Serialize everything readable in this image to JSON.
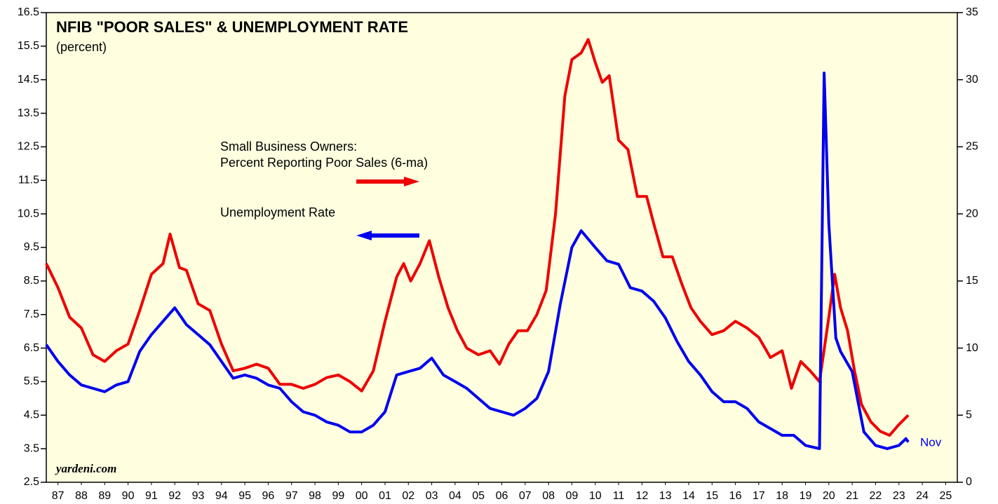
{
  "chart_data": {
    "type": "line",
    "title": "NFIB \"POOR SALES\" & UNEMPLOYMENT RATE",
    "subtitle": "(percent)",
    "annotations": [
      "Small Business Owners:",
      "Percent Reporting Poor Sales (6-ma)",
      "Unemployment Rate",
      "yardeni.com",
      "Nov"
    ],
    "xlim": [
      1987,
      2026
    ],
    "xticks": [
      {
        "value": 1987.5,
        "label": "87"
      },
      {
        "value": 1988.5,
        "label": "88"
      },
      {
        "value": 1989.5,
        "label": "89"
      },
      {
        "value": 1990.5,
        "label": "90"
      },
      {
        "value": 1991.5,
        "label": "91"
      },
      {
        "value": 1992.5,
        "label": "92"
      },
      {
        "value": 1993.5,
        "label": "93"
      },
      {
        "value": 1994.5,
        "label": "94"
      },
      {
        "value": 1995.5,
        "label": "95"
      },
      {
        "value": 1996.5,
        "label": "96"
      },
      {
        "value": 1997.5,
        "label": "97"
      },
      {
        "value": 1998.5,
        "label": "98"
      },
      {
        "value": 1999.5,
        "label": "99"
      },
      {
        "value": 2000.5,
        "label": "00"
      },
      {
        "value": 2001.5,
        "label": "01"
      },
      {
        "value": 2002.5,
        "label": "02"
      },
      {
        "value": 2003.5,
        "label": "03"
      },
      {
        "value": 2004.5,
        "label": "04"
      },
      {
        "value": 2005.5,
        "label": "05"
      },
      {
        "value": 2006.5,
        "label": "06"
      },
      {
        "value": 2007.5,
        "label": "07"
      },
      {
        "value": 2008.5,
        "label": "08"
      },
      {
        "value": 2009.5,
        "label": "09"
      },
      {
        "value": 2010.5,
        "label": "10"
      },
      {
        "value": 2011.5,
        "label": "11"
      },
      {
        "value": 2012.5,
        "label": "12"
      },
      {
        "value": 2013.5,
        "label": "13"
      },
      {
        "value": 2014.5,
        "label": "14"
      },
      {
        "value": 2015.5,
        "label": "15"
      },
      {
        "value": 2016.5,
        "label": "16"
      },
      {
        "value": 2017.5,
        "label": "17"
      },
      {
        "value": 2018.5,
        "label": "18"
      },
      {
        "value": 2019.5,
        "label": "19"
      },
      {
        "value": 2020.5,
        "label": "20"
      },
      {
        "value": 2021.5,
        "label": "21"
      },
      {
        "value": 2022.5,
        "label": "22"
      },
      {
        "value": 2023.5,
        "label": "23"
      },
      {
        "value": 2024.5,
        "label": "24"
      },
      {
        "value": 2025.5,
        "label": "25"
      }
    ],
    "ylim": [
      2.5,
      16.5
    ],
    "yticks": [
      2.5,
      3.5,
      4.5,
      5.5,
      6.5,
      7.5,
      8.5,
      9.5,
      10.5,
      11.5,
      12.5,
      13.5,
      14.5,
      15.5,
      16.5
    ],
    "y2lim": [
      0,
      35
    ],
    "y2ticks": [
      0,
      5,
      10,
      15,
      20,
      25,
      30,
      35
    ],
    "series": [
      {
        "name": "Unemployment Rate",
        "color": "#0000ee",
        "x": [
          1987.0,
          1987.5,
          1988.0,
          1988.5,
          1989.0,
          1989.5,
          1990.0,
          1990.5,
          1991.0,
          1991.5,
          1992.0,
          1992.5,
          1993.0,
          1993.5,
          1994.0,
          1994.5,
          1995.0,
          1995.5,
          1996.0,
          1996.5,
          1997.0,
          1997.5,
          1998.0,
          1998.5,
          1999.0,
          1999.5,
          2000.0,
          2000.5,
          2001.0,
          2001.5,
          2002.0,
          2002.5,
          2003.0,
          2003.5,
          2004.0,
          2004.5,
          2005.0,
          2005.5,
          2006.0,
          2006.5,
          2007.0,
          2007.5,
          2008.0,
          2008.5,
          2009.0,
          2009.5,
          2009.9,
          2010.5,
          2011.0,
          2011.5,
          2012.0,
          2012.5,
          2013.0,
          2013.5,
          2014.0,
          2014.5,
          2015.0,
          2015.5,
          2016.0,
          2016.5,
          2017.0,
          2017.5,
          2018.0,
          2018.5,
          2019.0,
          2019.5,
          2020.1,
          2020.3,
          2020.5,
          2020.8,
          2021.0,
          2021.5,
          2022.0,
          2022.5,
          2023.0,
          2023.5,
          2023.8,
          2023.9
        ],
        "values": [
          6.6,
          6.1,
          5.7,
          5.4,
          5.3,
          5.2,
          5.4,
          5.5,
          6.4,
          6.9,
          7.3,
          7.7,
          7.2,
          6.9,
          6.6,
          6.1,
          5.6,
          5.7,
          5.6,
          5.4,
          5.3,
          4.9,
          4.6,
          4.5,
          4.3,
          4.2,
          4.0,
          4.0,
          4.2,
          4.6,
          5.7,
          5.8,
          5.9,
          6.2,
          5.7,
          5.5,
          5.3,
          5.0,
          4.7,
          4.6,
          4.5,
          4.7,
          5.0,
          5.8,
          7.8,
          9.5,
          10.0,
          9.5,
          9.1,
          9.0,
          8.3,
          8.2,
          7.9,
          7.4,
          6.7,
          6.1,
          5.7,
          5.2,
          4.9,
          4.9,
          4.7,
          4.3,
          4.1,
          3.9,
          3.9,
          3.6,
          3.5,
          14.7,
          10.2,
          6.8,
          6.4,
          5.8,
          4.0,
          3.6,
          3.5,
          3.6,
          3.8,
          3.7
        ]
      },
      {
        "name": "Small Business Owners: Percent Reporting Poor Sales (6-ma)",
        "color": "#ee0000",
        "axis": "y2",
        "x": [
          1987.0,
          1987.5,
          1988.0,
          1988.5,
          1989.0,
          1989.5,
          1990.0,
          1990.5,
          1991.0,
          1991.5,
          1992.0,
          1992.3,
          1992.7,
          1993.0,
          1993.5,
          1994.0,
          1994.5,
          1995.0,
          1995.5,
          1996.0,
          1996.5,
          1997.0,
          1997.5,
          1998.0,
          1998.5,
          1999.0,
          1999.5,
          2000.0,
          2000.5,
          2001.0,
          2001.5,
          2002.0,
          2002.3,
          2002.6,
          2003.0,
          2003.4,
          2003.8,
          2004.2,
          2004.6,
          2005.0,
          2005.5,
          2006.0,
          2006.4,
          2006.8,
          2007.2,
          2007.6,
          2008.0,
          2008.4,
          2008.8,
          2009.2,
          2009.5,
          2009.9,
          2010.2,
          2010.5,
          2010.8,
          2011.1,
          2011.5,
          2011.9,
          2012.3,
          2012.7,
          2013.0,
          2013.4,
          2013.8,
          2014.2,
          2014.6,
          2015.0,
          2015.5,
          2016.0,
          2016.5,
          2017.0,
          2017.5,
          2018.0,
          2018.5,
          2018.9,
          2019.3,
          2019.7,
          2020.1,
          2020.5,
          2020.75,
          2021.0,
          2021.3,
          2021.6,
          2021.9,
          2022.3,
          2022.7,
          2023.1,
          2023.5,
          2023.9
        ],
        "values": [
          16.3,
          14.5,
          12.3,
          11.5,
          9.5,
          9.0,
          9.8,
          10.3,
          12.8,
          15.5,
          16.3,
          18.5,
          16.0,
          15.8,
          13.3,
          12.8,
          10.3,
          8.3,
          8.5,
          8.8,
          8.5,
          7.3,
          7.3,
          7.0,
          7.3,
          7.8,
          8.0,
          7.5,
          6.8,
          8.3,
          12.0,
          15.3,
          16.3,
          15.0,
          16.3,
          18.0,
          15.3,
          13.0,
          11.3,
          10.0,
          9.5,
          9.8,
          8.8,
          10.3,
          11.3,
          11.3,
          12.5,
          14.3,
          20.0,
          28.8,
          31.5,
          32.0,
          33.0,
          31.3,
          29.8,
          30.3,
          25.5,
          24.8,
          21.3,
          21.3,
          19.3,
          16.8,
          16.8,
          14.8,
          13.0,
          12.0,
          11.0,
          11.3,
          12.0,
          11.5,
          10.8,
          9.3,
          9.8,
          7.0,
          9.0,
          8.3,
          7.5,
          12.3,
          15.5,
          13.0,
          11.3,
          8.3,
          5.8,
          4.5,
          3.8,
          3.5,
          4.3,
          5.0
        ]
      }
    ]
  }
}
